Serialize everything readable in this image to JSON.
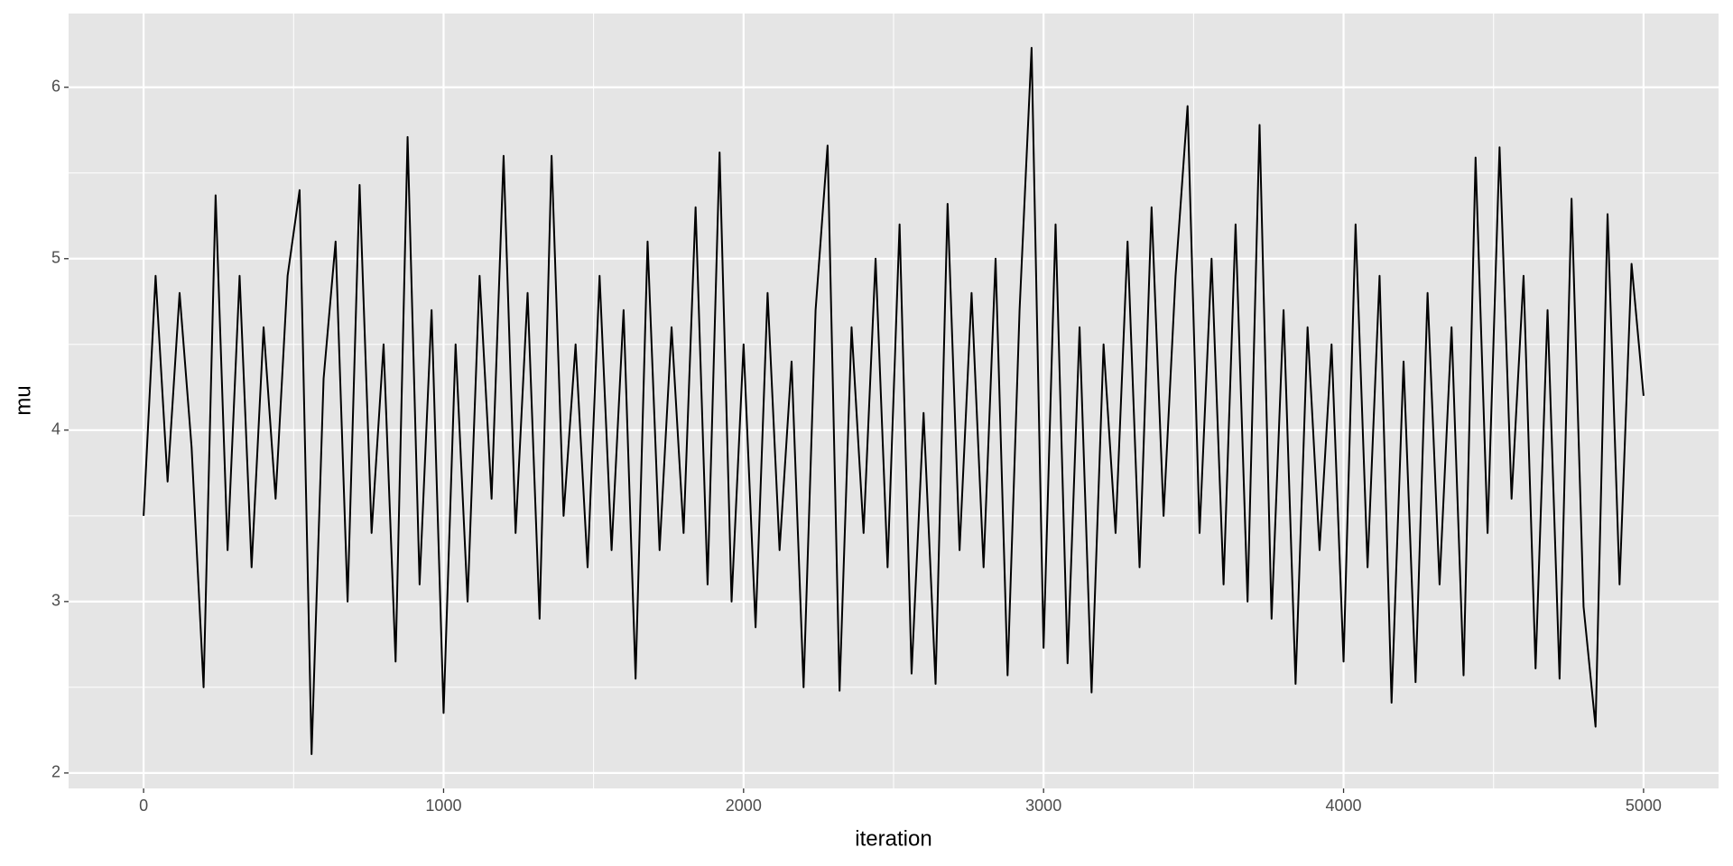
{
  "chart_data": {
    "type": "line",
    "x_label": "iteration",
    "y_label": "mu",
    "x": [
      0,
      40,
      80,
      120,
      160,
      200,
      240,
      280,
      320,
      360,
      400,
      440,
      480,
      520,
      560,
      600,
      640,
      680,
      720,
      760,
      800,
      840,
      880,
      920,
      960,
      1000,
      1040,
      1080,
      1120,
      1160,
      1200,
      1240,
      1280,
      1320,
      1360,
      1400,
      1440,
      1480,
      1520,
      1560,
      1600,
      1640,
      1680,
      1720,
      1760,
      1800,
      1840,
      1880,
      1920,
      1960,
      2000,
      2040,
      2080,
      2120,
      2160,
      2200,
      2240,
      2280,
      2320,
      2360,
      2400,
      2440,
      2480,
      2520,
      2560,
      2600,
      2640,
      2680,
      2720,
      2760,
      2800,
      2840,
      2880,
      2920,
      2960,
      3000,
      3040,
      3080,
      3120,
      3160,
      3200,
      3240,
      3280,
      3320,
      3360,
      3400,
      3440,
      3480,
      3520,
      3560,
      3600,
      3640,
      3680,
      3720,
      3760,
      3800,
      3840,
      3880,
      3920,
      3960,
      4000,
      4040,
      4080,
      4120,
      4160,
      4200,
      4240,
      4280,
      4320,
      4360,
      4400,
      4440,
      4480,
      4520,
      4560,
      4600,
      4640,
      4680,
      4720,
      4760,
      4800,
      4840,
      4880,
      4920,
      4960,
      5000
    ],
    "series": [
      {
        "name": "mu",
        "color": "#000000",
        "values": [
          3.5,
          4.9,
          3.7,
          4.8,
          3.9,
          2.5,
          5.37,
          3.3,
          4.9,
          3.2,
          4.6,
          3.6,
          4.9,
          5.4,
          2.11,
          4.3,
          5.1,
          3.0,
          5.43,
          3.4,
          4.5,
          2.65,
          5.71,
          3.1,
          4.7,
          2.35,
          4.5,
          3.0,
          4.9,
          3.6,
          5.6,
          3.4,
          4.8,
          2.9,
          5.6,
          3.5,
          4.5,
          3.2,
          4.9,
          3.3,
          4.7,
          2.55,
          5.1,
          3.3,
          4.6,
          3.4,
          5.3,
          3.1,
          5.62,
          3.0,
          4.5,
          2.85,
          4.8,
          3.3,
          4.4,
          2.5,
          4.7,
          5.66,
          2.48,
          4.6,
          3.4,
          5.0,
          3.2,
          5.2,
          2.58,
          4.1,
          2.52,
          5.32,
          3.3,
          4.8,
          3.2,
          5.0,
          2.57,
          4.7,
          6.23,
          2.73,
          5.2,
          2.64,
          4.6,
          2.47,
          4.5,
          3.4,
          5.1,
          3.2,
          5.3,
          3.5,
          4.9,
          5.89,
          3.4,
          5.0,
          3.1,
          5.2,
          3.0,
          5.78,
          2.9,
          4.7,
          2.52,
          4.6,
          3.3,
          4.5,
          2.65,
          5.2,
          3.2,
          4.9,
          2.41,
          4.4,
          2.53,
          4.8,
          3.1,
          4.6,
          2.57,
          5.59,
          3.4,
          5.65,
          3.6,
          4.9,
          2.61,
          4.7,
          2.55,
          5.35,
          2.97,
          2.27,
          5.26,
          3.1,
          4.97,
          4.2
        ]
      }
    ],
    "xlim": [
      -250,
      5250
    ],
    "ylim": [
      1.91,
      6.43
    ],
    "xticks": [
      0,
      1000,
      2000,
      3000,
      4000,
      5000
    ],
    "yticks": [
      2,
      3,
      4,
      5,
      6
    ],
    "grid": true,
    "panel_color": "#e5e5e5"
  }
}
